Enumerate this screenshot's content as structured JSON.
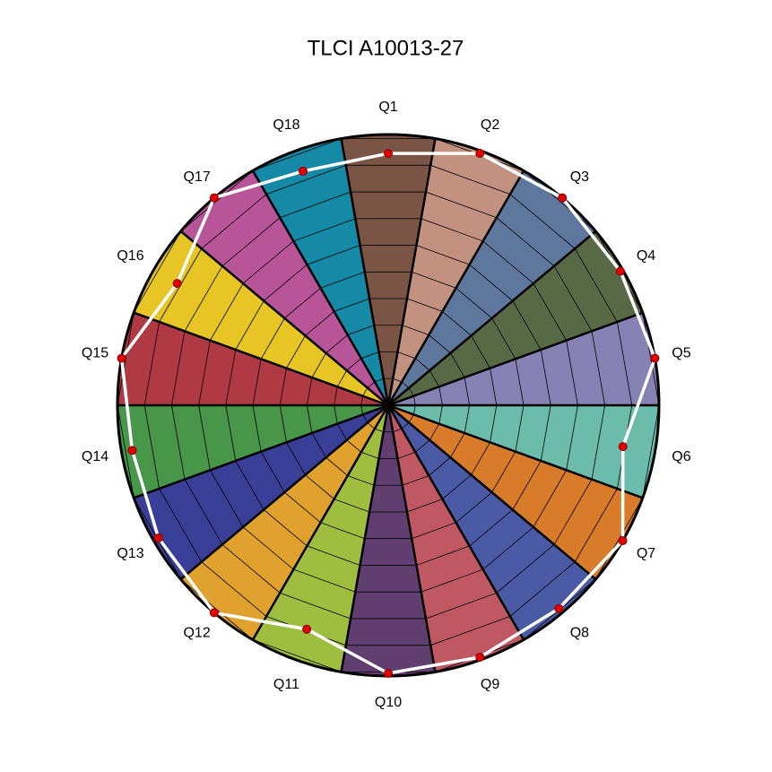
{
  "chart_data": {
    "type": "radar",
    "title": "TLCI A10013-27",
    "categories": [
      "Q1",
      "Q2",
      "Q3",
      "Q4",
      "Q5",
      "Q6",
      "Q7",
      "Q8",
      "Q9",
      "Q10",
      "Q11",
      "Q12",
      "Q13",
      "Q14",
      "Q15",
      "Q16",
      "Q17",
      "Q18"
    ],
    "category_colors": [
      "#7a5444",
      "#c39180",
      "#5e779c",
      "#586a45",
      "#8682b4",
      "#6bbcab",
      "#d87c2c",
      "#4b5aa4",
      "#c05863",
      "#603e70",
      "#9fbd3f",
      "#e0a12f",
      "#393f96",
      "#47964a",
      "#b03a43",
      "#e6c525",
      "#b85598",
      "#1589a6"
    ],
    "values": [
      93,
      99,
      100,
      99,
      100,
      88,
      100,
      98,
      99,
      99,
      88,
      100,
      98,
      96,
      100,
      90,
      100,
      92
    ],
    "line_color": "#ffffff",
    "marker_color": "#e00000",
    "rlim": [
      0,
      100
    ],
    "rticks": [
      10,
      20,
      30,
      40,
      50,
      60,
      70,
      80,
      90,
      100
    ],
    "grid": true
  }
}
